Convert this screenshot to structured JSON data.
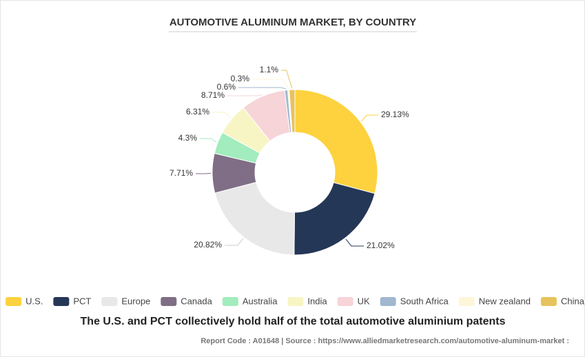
{
  "chart_data": {
    "type": "pie",
    "title": "AUTOMOTIVE ALUMINUM MARKET, BY COUNTRY",
    "categories": [
      "U.S.",
      "PCT",
      "Europe",
      "Canada",
      "Australia",
      "India",
      "UK",
      "South Africa",
      "New zealand",
      "China"
    ],
    "values": [
      29.13,
      21.02,
      20.82,
      7.71,
      4.3,
      6.31,
      8.71,
      0.6,
      0.3,
      1.1
    ],
    "value_labels": [
      "29.13%",
      "21.02%",
      "20.82%",
      "7.71%",
      "4.3%",
      "6.31%",
      "8.71%",
      "0.6%",
      "0.3%",
      "1.1%"
    ],
    "colors": [
      "#fdd23e",
      "#243757",
      "#e8e8e8",
      "#7f6e85",
      "#a2ecbd",
      "#f8f5c5",
      "#f6d4d8",
      "#a1b7cf",
      "#fdf6d8",
      "#e8c35c"
    ],
    "donut": true,
    "caption": "The U.S. and PCT collectively hold half of the total automotive aluminium patents",
    "footer": "Report Code : A01648  |  Source : https://www.alliedmarketresearch.com/automotive-aluminum-market :"
  }
}
